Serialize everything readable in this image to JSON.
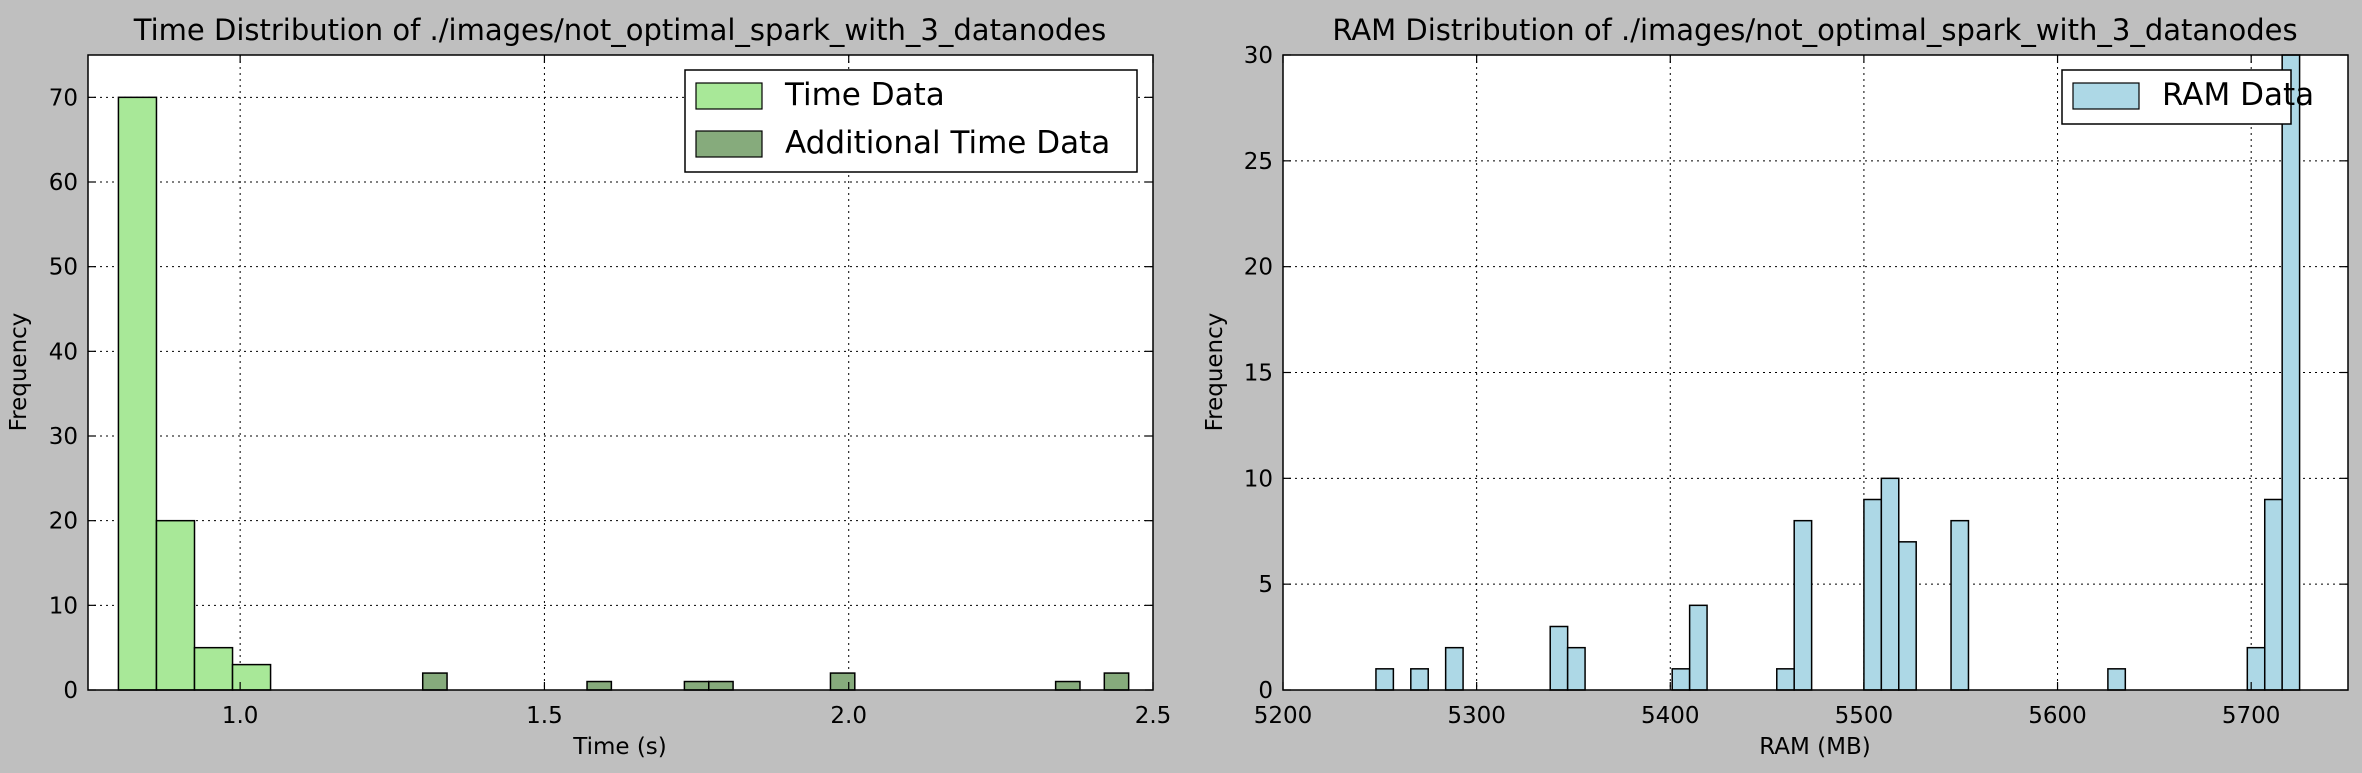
{
  "chart_data": [
    {
      "type": "bar",
      "title": "Time Distribution of ./images/not_optimal_spark_with_3_datanodes",
      "xlabel": "Time (s)",
      "ylabel": "Frequency",
      "xlim": [
        0.75,
        2.5
      ],
      "ylim": [
        0,
        75
      ],
      "xticks": [
        1.0,
        1.5,
        2.0,
        2.5
      ],
      "xtick_labels": [
        "1.0",
        "1.5",
        "2.0",
        "2.5"
      ],
      "yticks": [
        0,
        10,
        20,
        30,
        40,
        50,
        60,
        70
      ],
      "grid": true,
      "legend_position": "top-right",
      "series": [
        {
          "name": "Time Data",
          "color": "#a8e898",
          "bins": [
            {
              "x0": 0.8,
              "x1": 0.8625,
              "count": 70
            },
            {
              "x0": 0.8625,
              "x1": 0.925,
              "count": 20
            },
            {
              "x0": 0.925,
              "x1": 0.9875,
              "count": 5
            },
            {
              "x0": 0.9875,
              "x1": 1.05,
              "count": 3
            }
          ]
        },
        {
          "name": "Additional Time Data",
          "color": "#86ab7c",
          "bins": [
            {
              "x0": 1.3,
              "x1": 1.34,
              "count": 2
            },
            {
              "x0": 1.57,
              "x1": 1.61,
              "count": 1
            },
            {
              "x0": 1.73,
              "x1": 1.77,
              "count": 1
            },
            {
              "x0": 1.77,
              "x1": 1.81,
              "count": 1
            },
            {
              "x0": 1.97,
              "x1": 2.01,
              "count": 2
            },
            {
              "x0": 2.34,
              "x1": 2.38,
              "count": 1
            },
            {
              "x0": 2.42,
              "x1": 2.46,
              "count": 2
            }
          ]
        }
      ]
    },
    {
      "type": "bar",
      "title": "RAM Distribution of ./images/not_optimal_spark_with_3_datanodes",
      "xlabel": "RAM (MB)",
      "ylabel": "Frequency",
      "xlim": [
        5200,
        5750
      ],
      "ylim": [
        0,
        30
      ],
      "xticks": [
        5200,
        5300,
        5400,
        5500,
        5600,
        5700
      ],
      "xtick_labels": [
        "5200",
        "5300",
        "5400",
        "5500",
        "5600",
        "5700"
      ],
      "yticks": [
        0,
        5,
        10,
        15,
        20,
        25,
        30
      ],
      "grid": true,
      "legend_position": "top-right",
      "series": [
        {
          "name": "RAM Data",
          "color": "#add8e6",
          "bins": [
            {
              "x0": 5248,
              "x1": 5257,
              "count": 1
            },
            {
              "x0": 5257,
              "x1": 5266,
              "count": 0
            },
            {
              "x0": 5266,
              "x1": 5275,
              "count": 1
            },
            {
              "x0": 5275,
              "x1": 5284,
              "count": 0
            },
            {
              "x0": 5284,
              "x1": 5293,
              "count": 2
            },
            {
              "x0": 5338,
              "x1": 5347,
              "count": 3
            },
            {
              "x0": 5347,
              "x1": 5356,
              "count": 2
            },
            {
              "x0": 5401,
              "x1": 5410,
              "count": 1
            },
            {
              "x0": 5410,
              "x1": 5419,
              "count": 4
            },
            {
              "x0": 5455,
              "x1": 5464,
              "count": 1
            },
            {
              "x0": 5464,
              "x1": 5473,
              "count": 8
            },
            {
              "x0": 5500,
              "x1": 5509,
              "count": 9
            },
            {
              "x0": 5509,
              "x1": 5518,
              "count": 10
            },
            {
              "x0": 5518,
              "x1": 5527,
              "count": 7
            },
            {
              "x0": 5545,
              "x1": 5554,
              "count": 8
            },
            {
              "x0": 5626,
              "x1": 5635,
              "count": 1
            },
            {
              "x0": 5698,
              "x1": 5707,
              "count": 2
            },
            {
              "x0": 5707,
              "x1": 5716,
              "count": 9
            },
            {
              "x0": 5716,
              "x1": 5725,
              "count": 30
            }
          ]
        }
      ]
    }
  ]
}
